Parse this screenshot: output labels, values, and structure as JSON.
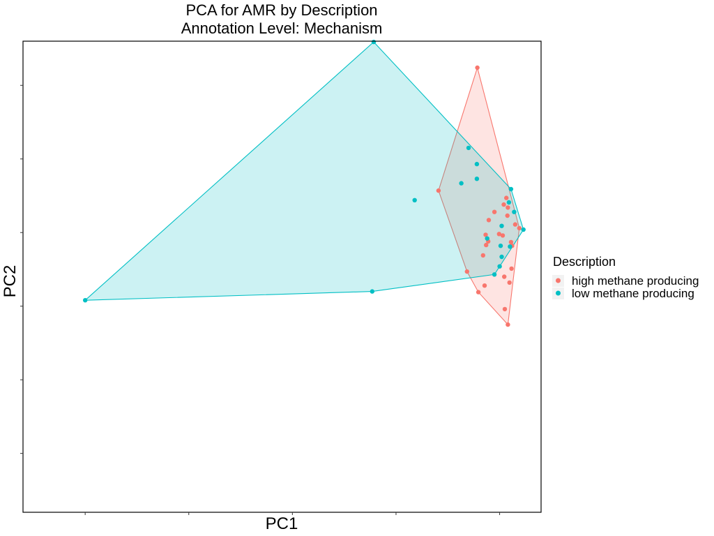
{
  "chart_data": {
    "type": "scatter",
    "title": "PCA for AMR by Description",
    "subtitle": "Annotation Level: Mechanism",
    "xlabel": "PC1",
    "ylabel": "PC2",
    "grid": false,
    "tick_labels_shown": false,
    "hull_polygons": true,
    "legend_position": "right",
    "legend_title": "Description",
    "xlim": [
      -0.36,
      0.14
    ],
    "ylim": [
      -0.38,
      0.26
    ],
    "series": [
      {
        "name": "high methane producing",
        "color": "#F8766D",
        "x": [
          0.0785,
          0.041,
          0.119,
          0.111,
          0.1065,
          0.095,
          0.1115,
          0.1075,
          0.0865,
          0.1045,
          0.1095,
          0.103,
          0.089,
          0.087,
          0.084,
          0.108,
          0.112,
          0.0685,
          0.0855,
          0.105,
          0.0795,
          0.108,
          0.0895,
          0.0995,
          0.115,
          0.104
        ],
        "y": [
          0.224,
          0.057,
          0.006,
          -0.013,
          0.047,
          0.028,
          -0.049,
          0.023,
          -0.003,
          -0.06,
          -0.068,
          -0.004,
          -0.012,
          -0.017,
          -0.031,
          0.034,
          -0.018,
          -0.053,
          -0.072,
          -0.104,
          -0.081,
          -0.125,
          0.017,
          -0.002,
          0.011,
          0.038
        ]
      },
      {
        "name": "low methane producing",
        "color": "#00BFC4",
        "x": [
          -0.0215,
          0.07,
          0.078,
          0.078,
          0.063,
          0.111,
          0.018,
          0.109,
          0.114,
          0.123,
          0.102,
          0.088,
          0.101,
          0.11,
          0.102,
          0.1,
          0.095,
          -0.023,
          -0.3
        ],
        "y": [
          0.259,
          0.115,
          0.093,
          0.073,
          0.067,
          0.059,
          0.044,
          0.041,
          0.028,
          0.004,
          0.009,
          -0.008,
          -0.018,
          -0.019,
          -0.033,
          -0.046,
          -0.057,
          -0.08,
          -0.092
        ]
      }
    ]
  }
}
